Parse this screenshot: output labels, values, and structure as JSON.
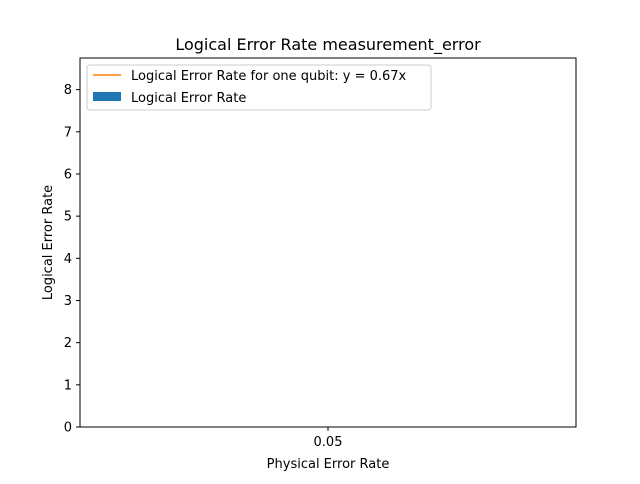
{
  "chart_data": {
    "type": "bar",
    "title": "Logical Error Rate measurement_error",
    "xlabel": "Physical Error Rate",
    "ylabel": "Logical Error Rate",
    "categories": [
      "0.05"
    ],
    "x_ticks": [
      "0.05"
    ],
    "y_ticks": [
      "0",
      "1",
      "2",
      "3",
      "4",
      "5",
      "6",
      "7",
      "8"
    ],
    "ylim": [
      0,
      8.75
    ],
    "grid": false,
    "legend_position": "upper-left",
    "series": [
      {
        "name": "Logical Error Rate for one qubit: y = 0.67x",
        "type": "line",
        "color": "#ff7f0e",
        "values": [
          0.0335
        ]
      },
      {
        "name": "Logical Error Rate",
        "type": "bar",
        "color": "#1f77b4",
        "values": [
          0
        ]
      }
    ]
  }
}
